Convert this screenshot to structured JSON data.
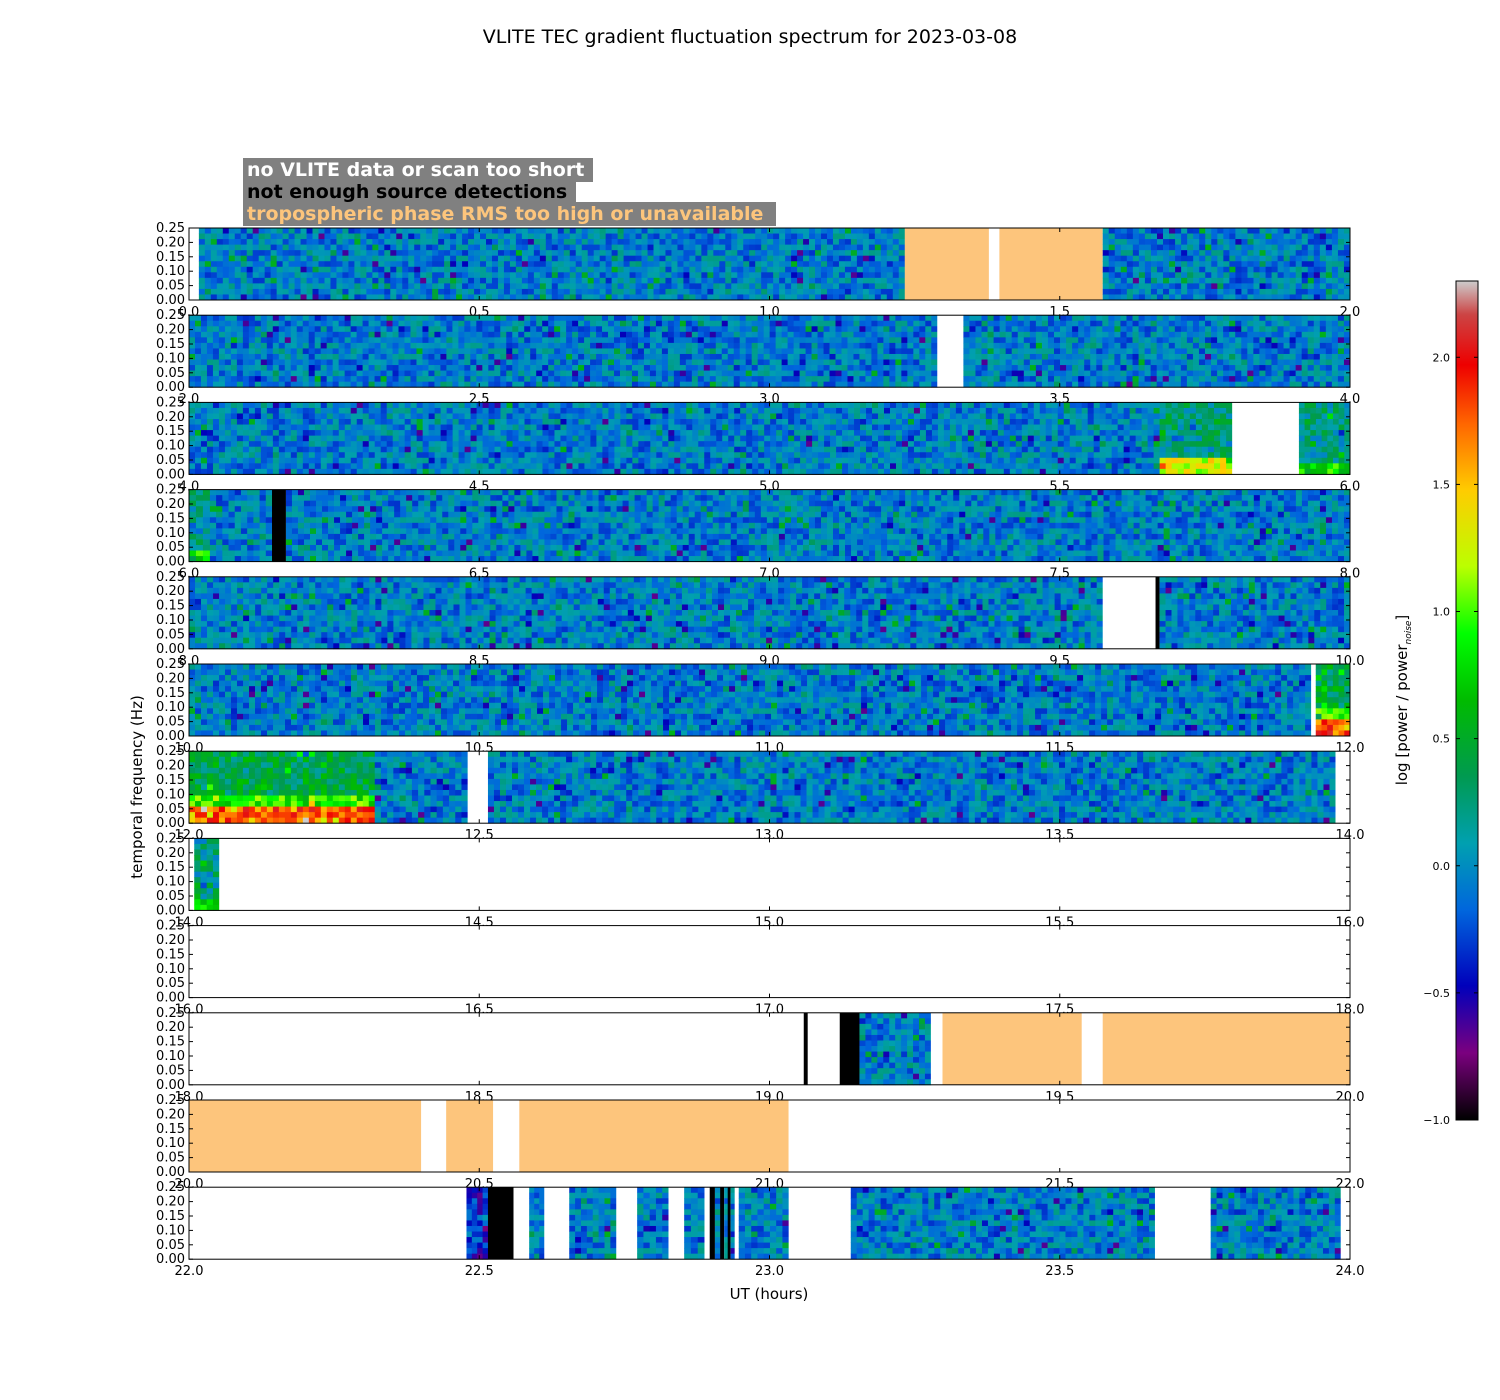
{
  "title": "VLITE TEC gradient fluctuation spectrum for 2023-03-08",
  "legend": [
    {
      "text": "no VLITE data or scan too short",
      "text_color": "#ffffff",
      "box_color": "#808080"
    },
    {
      "text": "not enough source detections",
      "text_color": "#000000",
      "box_color": "#808080"
    },
    {
      "text": "tropospheric phase RMS too high or unavailable",
      "text_color": "#fdc57c",
      "box_color": "#808080"
    }
  ],
  "colors": {
    "no_data": "#ffffff",
    "few_detections": "#000000",
    "tropo_rms": "#fdc57c"
  },
  "chart_data": {
    "type": "heatmap",
    "title": "VLITE TEC gradient fluctuation spectrum for 2023-03-08",
    "xlabel": "UT (hours)",
    "ylabel": "temporal frequency (Hz)",
    "ylim": [
      0,
      0.25
    ],
    "yticks": [
      "0.00",
      "0.05",
      "0.10",
      "0.15",
      "0.20",
      "0.25"
    ],
    "colorbar": {
      "label_main": "log [power / power",
      "label_sub": "noise",
      "label_end": "]",
      "colormap": "spectral",
      "range": [
        -1.0,
        2.3
      ],
      "ticks": [
        "−1.0",
        "−0.5",
        "0.0",
        "0.5",
        "1.0",
        "1.5",
        "2.0"
      ]
    },
    "panels": [
      {
        "xlim": [
          0,
          2
        ],
        "xticks": [
          "0.0",
          "0.5",
          "1.0",
          "1.5",
          "2.0"
        ],
        "segments": [
          {
            "start": 0.0,
            "end": 0.017,
            "kind": "no_data"
          },
          {
            "start": 0.017,
            "end": 1.233,
            "kind": "spectrum"
          },
          {
            "start": 1.233,
            "end": 1.378,
            "kind": "tropo_rms"
          },
          {
            "start": 1.378,
            "end": 1.396,
            "kind": "no_data"
          },
          {
            "start": 1.396,
            "end": 1.574,
            "kind": "tropo_rms"
          },
          {
            "start": 1.574,
            "end": 2.0,
            "kind": "spectrum"
          }
        ]
      },
      {
        "xlim": [
          2,
          4
        ],
        "xticks": [
          "2.0",
          "2.5",
          "3.0",
          "3.5",
          "4.0"
        ],
        "segments": [
          {
            "start": 2.0,
            "end": 3.289,
            "kind": "spectrum"
          },
          {
            "start": 3.289,
            "end": 3.334,
            "kind": "no_data"
          },
          {
            "start": 3.334,
            "end": 4.0,
            "kind": "spectrum"
          }
        ]
      },
      {
        "xlim": [
          4,
          6
        ],
        "xticks": [
          "4.0",
          "4.5",
          "5.0",
          "5.5",
          "6.0"
        ],
        "segments": [
          {
            "start": 4.0,
            "end": 5.672,
            "kind": "spectrum"
          },
          {
            "start": 5.672,
            "end": 5.797,
            "kind": "spectrum",
            "activity": "low_freq_enhanced"
          },
          {
            "start": 5.797,
            "end": 5.912,
            "kind": "no_data"
          },
          {
            "start": 5.912,
            "end": 6.0,
            "kind": "spectrum",
            "activity": "moderate"
          }
        ]
      },
      {
        "xlim": [
          6,
          8
        ],
        "xticks": [
          "6.0",
          "6.5",
          "7.0",
          "7.5",
          "8.0"
        ],
        "segments": [
          {
            "start": 6.0,
            "end": 6.036,
            "kind": "spectrum",
            "activity": "moderate"
          },
          {
            "start": 6.036,
            "end": 6.143,
            "kind": "spectrum"
          },
          {
            "start": 6.143,
            "end": 6.167,
            "kind": "few_detections"
          },
          {
            "start": 6.167,
            "end": 8.0,
            "kind": "spectrum"
          }
        ]
      },
      {
        "xlim": [
          8,
          10
        ],
        "xticks": [
          "8.0",
          "8.5",
          "9.0",
          "9.5",
          "10.0"
        ],
        "segments": [
          {
            "start": 8.0,
            "end": 9.574,
            "kind": "spectrum"
          },
          {
            "start": 9.574,
            "end": 9.665,
            "kind": "no_data"
          },
          {
            "start": 9.665,
            "end": 9.672,
            "kind": "few_detections"
          },
          {
            "start": 9.672,
            "end": 10.0,
            "kind": "spectrum"
          }
        ]
      },
      {
        "xlim": [
          10,
          12
        ],
        "xticks": [
          "10.0",
          "10.5",
          "11.0",
          "11.5",
          "12.0"
        ],
        "segments": [
          {
            "start": 10.0,
            "end": 11.933,
            "kind": "spectrum"
          },
          {
            "start": 11.933,
            "end": 11.941,
            "kind": "no_data"
          },
          {
            "start": 11.941,
            "end": 12.0,
            "kind": "spectrum",
            "activity": "strong_low_freq"
          }
        ]
      },
      {
        "xlim": [
          12,
          14
        ],
        "xticks": [
          "12.0",
          "12.5",
          "13.0",
          "13.5",
          "14.0"
        ],
        "segments": [
          {
            "start": 12.0,
            "end": 12.32,
            "kind": "spectrum",
            "activity": "strong_low_freq"
          },
          {
            "start": 12.32,
            "end": 12.48,
            "kind": "spectrum"
          },
          {
            "start": 12.48,
            "end": 12.515,
            "kind": "no_data"
          },
          {
            "start": 12.515,
            "end": 13.975,
            "kind": "spectrum"
          },
          {
            "start": 13.975,
            "end": 14.0,
            "kind": "no_data"
          }
        ]
      },
      {
        "xlim": [
          14,
          16
        ],
        "xticks": [
          "14.0",
          "14.5",
          "15.0",
          "15.5",
          "16.0"
        ],
        "segments": [
          {
            "start": 14.0,
            "end": 14.009,
            "kind": "no_data"
          },
          {
            "start": 14.009,
            "end": 14.052,
            "kind": "spectrum",
            "activity": "moderate"
          },
          {
            "start": 14.052,
            "end": 16.0,
            "kind": "no_data"
          }
        ]
      },
      {
        "xlim": [
          16,
          18
        ],
        "xticks": [
          "16.0",
          "16.5",
          "17.0",
          "17.5",
          "18.0"
        ],
        "segments": [
          {
            "start": 16.0,
            "end": 18.0,
            "kind": "no_data"
          }
        ]
      },
      {
        "xlim": [
          18,
          20
        ],
        "xticks": [
          "18.0",
          "18.5",
          "19.0",
          "19.5",
          "20.0"
        ],
        "segments": [
          {
            "start": 18.0,
            "end": 19.059,
            "kind": "no_data"
          },
          {
            "start": 19.059,
            "end": 19.066,
            "kind": "few_detections"
          },
          {
            "start": 19.066,
            "end": 19.121,
            "kind": "no_data"
          },
          {
            "start": 19.121,
            "end": 19.155,
            "kind": "few_detections"
          },
          {
            "start": 19.155,
            "end": 19.278,
            "kind": "spectrum"
          },
          {
            "start": 19.278,
            "end": 19.298,
            "kind": "no_data"
          },
          {
            "start": 19.298,
            "end": 19.538,
            "kind": "tropo_rms"
          },
          {
            "start": 19.538,
            "end": 19.574,
            "kind": "no_data"
          },
          {
            "start": 19.574,
            "end": 20.0,
            "kind": "tropo_rms"
          }
        ]
      },
      {
        "xlim": [
          20,
          22
        ],
        "xticks": [
          "20.0",
          "20.5",
          "21.0",
          "21.5",
          "22.0"
        ],
        "segments": [
          {
            "start": 20.0,
            "end": 20.4,
            "kind": "tropo_rms"
          },
          {
            "start": 20.4,
            "end": 20.443,
            "kind": "no_data"
          },
          {
            "start": 20.443,
            "end": 20.524,
            "kind": "tropo_rms"
          },
          {
            "start": 20.524,
            "end": 20.569,
            "kind": "no_data"
          },
          {
            "start": 20.569,
            "end": 21.033,
            "kind": "tropo_rms"
          },
          {
            "start": 21.033,
            "end": 22.0,
            "kind": "no_data"
          }
        ]
      },
      {
        "xlim": [
          22,
          24
        ],
        "xticks": [
          "22.0",
          "22.5",
          "23.0",
          "23.5",
          "24.0"
        ],
        "segments": [
          {
            "start": 22.0,
            "end": 22.478,
            "kind": "no_data"
          },
          {
            "start": 22.478,
            "end": 22.515,
            "kind": "spectrum",
            "activity": "deep_low"
          },
          {
            "start": 22.515,
            "end": 22.559,
            "kind": "few_detections"
          },
          {
            "start": 22.559,
            "end": 22.586,
            "kind": "no_data"
          },
          {
            "start": 22.586,
            "end": 22.612,
            "kind": "spectrum"
          },
          {
            "start": 22.612,
            "end": 22.655,
            "kind": "no_data"
          },
          {
            "start": 22.655,
            "end": 22.736,
            "kind": "spectrum"
          },
          {
            "start": 22.736,
            "end": 22.772,
            "kind": "no_data"
          },
          {
            "start": 22.772,
            "end": 22.826,
            "kind": "spectrum"
          },
          {
            "start": 22.826,
            "end": 22.853,
            "kind": "no_data"
          },
          {
            "start": 22.853,
            "end": 22.888,
            "kind": "spectrum"
          },
          {
            "start": 22.888,
            "end": 22.897,
            "kind": "no_data"
          },
          {
            "start": 22.897,
            "end": 22.906,
            "kind": "few_detections"
          },
          {
            "start": 22.906,
            "end": 22.915,
            "kind": "spectrum"
          },
          {
            "start": 22.915,
            "end": 22.922,
            "kind": "few_detections"
          },
          {
            "start": 22.922,
            "end": 22.928,
            "kind": "spectrum"
          },
          {
            "start": 22.928,
            "end": 22.933,
            "kind": "few_detections"
          },
          {
            "start": 22.933,
            "end": 22.94,
            "kind": "spectrum"
          },
          {
            "start": 22.94,
            "end": 22.947,
            "kind": "no_data"
          },
          {
            "start": 22.947,
            "end": 23.033,
            "kind": "spectrum"
          },
          {
            "start": 23.033,
            "end": 23.14,
            "kind": "no_data"
          },
          {
            "start": 23.14,
            "end": 23.664,
            "kind": "spectrum"
          },
          {
            "start": 23.664,
            "end": 23.76,
            "kind": "no_data"
          },
          {
            "start": 23.76,
            "end": 23.984,
            "kind": "spectrum"
          },
          {
            "start": 23.984,
            "end": 24.0,
            "kind": "no_data"
          }
        ]
      }
    ]
  }
}
